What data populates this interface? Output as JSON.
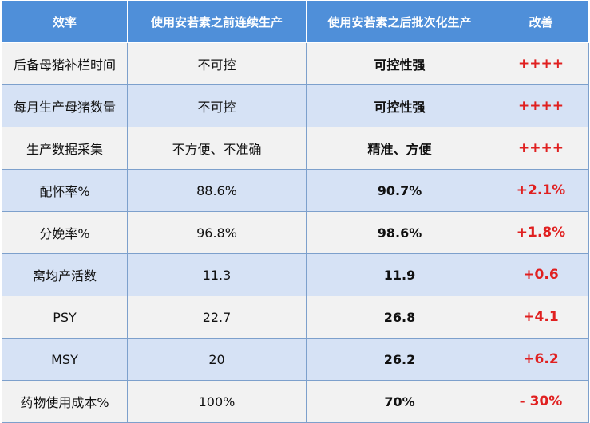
{
  "header": {
    "col1": "效率",
    "col2": "使用安若素之前连续生产",
    "col3": "使用安若素之后批次化生产",
    "col4": "改善"
  },
  "rows": [
    {
      "metric": "后备母猪补栏时间",
      "before": "不可控",
      "after": "可控性强",
      "improvement": "++++"
    },
    {
      "metric": "每月生产母猪数量",
      "before": "不可控",
      "after": "可控性强",
      "improvement": "++++"
    },
    {
      "metric": "生产数据采集",
      "before": "不方便、不准确",
      "after": "精准、方便",
      "improvement": "++++"
    },
    {
      "metric": "配怀率%",
      "before": "88.6%",
      "after": "90.7%",
      "improvement": "+2.1%"
    },
    {
      "metric": "分娩率%",
      "before": "96.8%",
      "after": "98.6%",
      "improvement": "+1.8%"
    },
    {
      "metric": "窝均产活数",
      "before": "11.3",
      "after": "11.9",
      "improvement": "+0.6"
    },
    {
      "metric": "PSY",
      "before": "22.7",
      "after": "26.8",
      "improvement": "+4.1"
    },
    {
      "metric": "MSY",
      "before": "20",
      "after": "26.2",
      "improvement": "+6.2"
    },
    {
      "metric": "药物使用成本%",
      "before": "100%",
      "after": "70%",
      "improvement": "- 30%"
    }
  ],
  "colors": {
    "header_bg": "#4f8fd9",
    "row_light": "#f2f2f2",
    "row_blue": "#d6e2f5",
    "improvement_text": "#e02020"
  }
}
